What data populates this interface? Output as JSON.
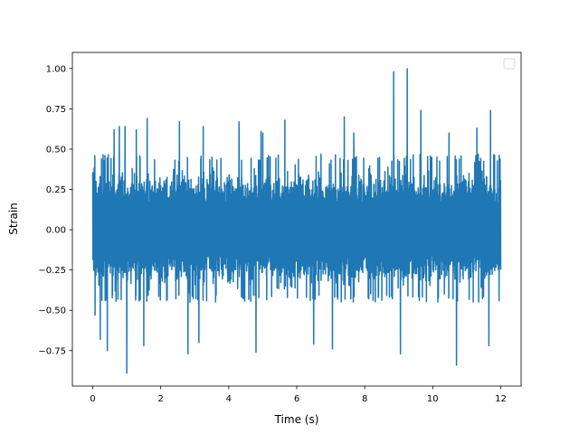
{
  "chart_data": {
    "type": "line",
    "title": "",
    "xlabel": "Time (s)",
    "ylabel": "Strain",
    "xlim": [
      -0.6,
      12.6
    ],
    "ylim": [
      -0.97,
      1.1
    ],
    "xticks": [
      0,
      2,
      4,
      6,
      8,
      10,
      12
    ],
    "xtick_labels": [
      "0",
      "2",
      "4",
      "6",
      "8",
      "10",
      "12"
    ],
    "yticks": [
      -0.75,
      -0.5,
      -0.25,
      0.0,
      0.25,
      0.5,
      0.75,
      1.0
    ],
    "ytick_labels": [
      "−0.75",
      "−0.50",
      "−0.25",
      "0.00",
      "0.25",
      "0.50",
      "0.75",
      "1.00"
    ],
    "grid": false,
    "legend": {
      "placement": "top-right",
      "entries": []
    },
    "series": [
      {
        "color": "#1f77b4",
        "x_range": [
          0,
          12
        ],
        "typical_range": [
          -0.45,
          0.47
        ],
        "peaks": [
          {
            "x": 0.06,
            "y": 0.46
          },
          {
            "x": 0.36,
            "y": 0.46
          },
          {
            "x": 0.63,
            "y": 0.62
          },
          {
            "x": 0.78,
            "y": 0.64
          },
          {
            "x": 0.95,
            "y": 0.64
          },
          {
            "x": 1.28,
            "y": 0.62
          },
          {
            "x": 1.6,
            "y": 0.69
          },
          {
            "x": 2.55,
            "y": 0.67
          },
          {
            "x": 3.25,
            "y": 0.64
          },
          {
            "x": 4.3,
            "y": 0.67
          },
          {
            "x": 4.95,
            "y": 0.61
          },
          {
            "x": 5.0,
            "y": 0.6
          },
          {
            "x": 5.65,
            "y": 0.68
          },
          {
            "x": 7.4,
            "y": 0.7
          },
          {
            "x": 7.68,
            "y": 0.6
          },
          {
            "x": 8.85,
            "y": 0.98
          },
          {
            "x": 9.25,
            "y": 1.0
          },
          {
            "x": 9.65,
            "y": 0.74
          },
          {
            "x": 10.48,
            "y": 0.6
          },
          {
            "x": 11.3,
            "y": 0.63
          },
          {
            "x": 11.7,
            "y": 0.74
          },
          {
            "x": 11.98,
            "y": 0.44
          }
        ],
        "troughs": [
          {
            "x": 0.07,
            "y": -0.53
          },
          {
            "x": 0.22,
            "y": -0.68
          },
          {
            "x": 0.43,
            "y": -0.75
          },
          {
            "x": 1.0,
            "y": -0.89
          },
          {
            "x": 1.5,
            "y": -0.72
          },
          {
            "x": 2.8,
            "y": -0.77
          },
          {
            "x": 3.12,
            "y": -0.7
          },
          {
            "x": 4.8,
            "y": -0.76
          },
          {
            "x": 6.5,
            "y": -0.71
          },
          {
            "x": 7.05,
            "y": -0.74
          },
          {
            "x": 9.05,
            "y": -0.77
          },
          {
            "x": 10.7,
            "y": -0.84
          },
          {
            "x": 11.65,
            "y": -0.72
          },
          {
            "x": 11.95,
            "y": -0.44
          }
        ]
      }
    ]
  }
}
